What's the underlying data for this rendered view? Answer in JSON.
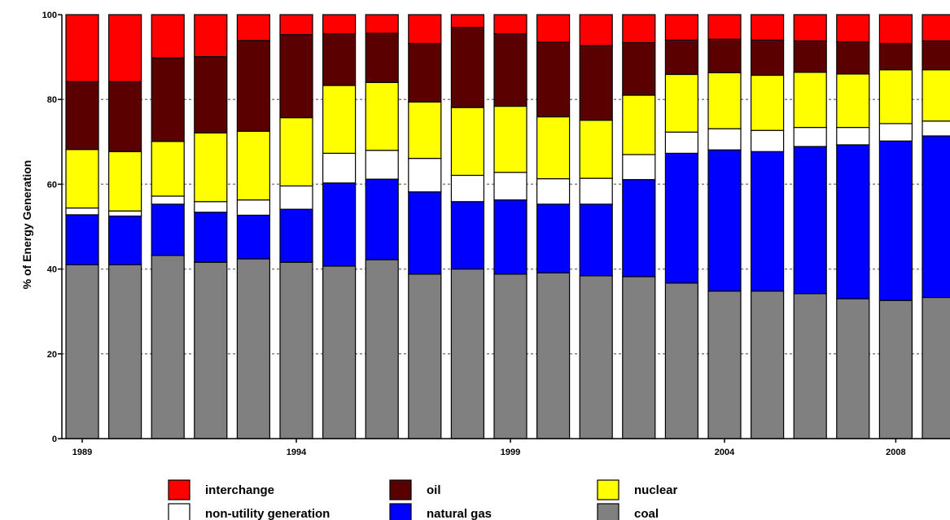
{
  "chart_data": {
    "type": "bar",
    "stacked": true,
    "title": "",
    "xlabel": "",
    "ylabel": "% of Energy Generation",
    "ylim": [
      0,
      100
    ],
    "y_ticks": [
      "0",
      "20",
      "40",
      "60",
      "80",
      "100"
    ],
    "x_tick_labels": [
      {
        "year": 1989,
        "label": "1989"
      },
      {
        "year": 1994,
        "label": "1994"
      },
      {
        "year": 1999,
        "label": "1999"
      },
      {
        "year": 2004,
        "label": "2004"
      },
      {
        "year": 2008,
        "label": "2008"
      }
    ],
    "grid": "horizontal-dotted",
    "legend_position": "bottom",
    "categories": [
      1989,
      1990,
      1991,
      1992,
      1993,
      1994,
      1995,
      1996,
      1997,
      1998,
      1999,
      2000,
      2001,
      2002,
      2003,
      2004,
      2005,
      2006,
      2007,
      2008,
      2009
    ],
    "series": [
      {
        "name": "coal",
        "color": "#808080",
        "values": [
          41.0,
          41.0,
          43.2,
          41.6,
          42.4,
          41.6,
          40.7,
          42.2,
          38.8,
          40.0,
          38.8,
          39.1,
          38.4,
          38.2,
          36.7,
          34.8,
          34.8,
          34.2,
          33.0,
          32.6,
          33.3
        ]
      },
      {
        "name": "natural gas",
        "color": "#0000ff",
        "values": [
          11.8,
          11.5,
          12.1,
          11.8,
          10.3,
          12.5,
          19.6,
          19.0,
          19.4,
          15.9,
          17.5,
          16.2,
          16.9,
          22.9,
          30.6,
          33.3,
          32.9,
          34.7,
          36.3,
          37.6,
          38.1
        ]
      },
      {
        "name": "non-utility generation",
        "color": "#ffffff",
        "values": [
          1.6,
          1.2,
          1.9,
          2.5,
          3.6,
          5.5,
          7.0,
          6.8,
          7.9,
          6.2,
          6.5,
          6.0,
          6.1,
          5.9,
          5.0,
          5.0,
          5.0,
          4.5,
          4.1,
          4.1,
          3.5
        ]
      },
      {
        "name": "nuclear",
        "color": "#ffff00",
        "values": [
          13.8,
          14.0,
          12.9,
          16.2,
          16.2,
          16.1,
          16.0,
          16.0,
          13.3,
          16.0,
          15.6,
          14.6,
          13.7,
          14.0,
          13.6,
          13.2,
          13.0,
          13.0,
          12.6,
          12.7,
          12.1
        ]
      },
      {
        "name": "oil",
        "color": "#5a0000",
        "values": [
          16.0,
          16.5,
          19.7,
          18.0,
          21.4,
          19.6,
          12.2,
          11.6,
          13.8,
          18.9,
          17.1,
          17.6,
          17.6,
          12.4,
          8.1,
          7.9,
          8.3,
          7.4,
          7.6,
          6.2,
          6.8
        ]
      },
      {
        "name": "interchange",
        "color": "#ff0000",
        "values": [
          15.8,
          15.8,
          10.2,
          9.9,
          6.1,
          4.7,
          4.5,
          4.4,
          6.8,
          3.0,
          4.5,
          6.5,
          7.3,
          6.6,
          6.0,
          5.8,
          6.0,
          6.2,
          6.4,
          6.8,
          6.2
        ]
      }
    ],
    "legend_order": [
      "interchange",
      "oil",
      "nuclear",
      "non-utility generation",
      "natural gas",
      "coal"
    ]
  }
}
